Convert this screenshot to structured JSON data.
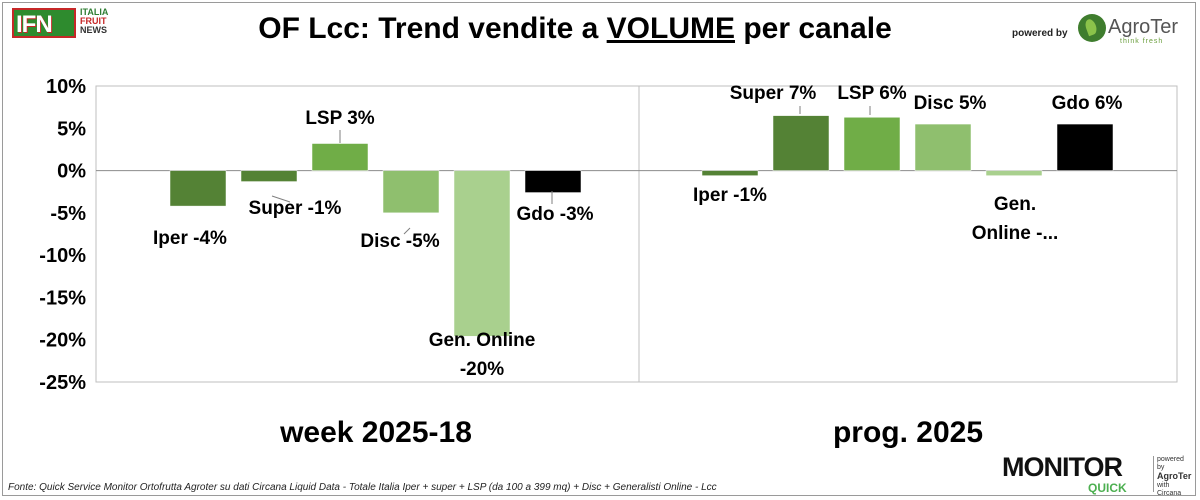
{
  "header": {
    "title_prefix": "OF Lcc: Trend vendite a ",
    "title_underlined": "VOLUME",
    "title_suffix": " per canale",
    "powered_by": "powered by",
    "brand": "AgroTer",
    "brand_tagline": "think fresh"
  },
  "ifn_logo": {
    "letters": "IFN",
    "line1": "ITALIA",
    "line2": "FRUIT",
    "line3": "NEWS"
  },
  "footer": {
    "source": "Fonte: Quick Service Monitor Ortofrutta Agroter su dati Circana Liquid Data - Totale Italia Iper + super + LSP (da 100 a 399 mq) + Disc + Generalisti Online - Lcc",
    "brand_main": "MONITOR",
    "brand_sub": "QUICK",
    "powered_line1": "powered by",
    "powered_line2": "AgroTer",
    "powered_line3": "with",
    "powered_line4": "Circana"
  },
  "colors": {
    "Iper": "#548235",
    "Super": "#548235",
    "LSP": "#70ad47",
    "Disc": "#8fbf6e",
    "Gen. Online": "#a9d08e",
    "Gdo": "#000000"
  },
  "chart_data": {
    "type": "bar",
    "ylim": [
      -25,
      10
    ],
    "yticks": [
      "10%",
      "5%",
      "0%",
      "-5%",
      "-10%",
      "-15%",
      "-20%",
      "-25%"
    ],
    "categories": [
      "Iper",
      "Super",
      "LSP",
      "Disc",
      "Gen. Online",
      "Gdo"
    ],
    "groups": [
      {
        "name": "week 2025-18",
        "values": [
          -4.2,
          -1.3,
          3.2,
          -5.0,
          -19.6,
          -2.6
        ],
        "labels": [
          "Iper -4%",
          "Super -1%",
          "LSP 3%",
          "Disc -5%",
          "Gen. Online -20%",
          "Gdo -3%"
        ]
      },
      {
        "name": "prog. 2025",
        "values": [
          -0.6,
          6.5,
          6.3,
          5.5,
          -0.6,
          5.5
        ],
        "labels": [
          "Iper -1%",
          "Super 7%",
          "LSP 6%",
          "Disc 5%",
          "Gen. Online -...",
          "Gdo 6%"
        ]
      }
    ]
  }
}
